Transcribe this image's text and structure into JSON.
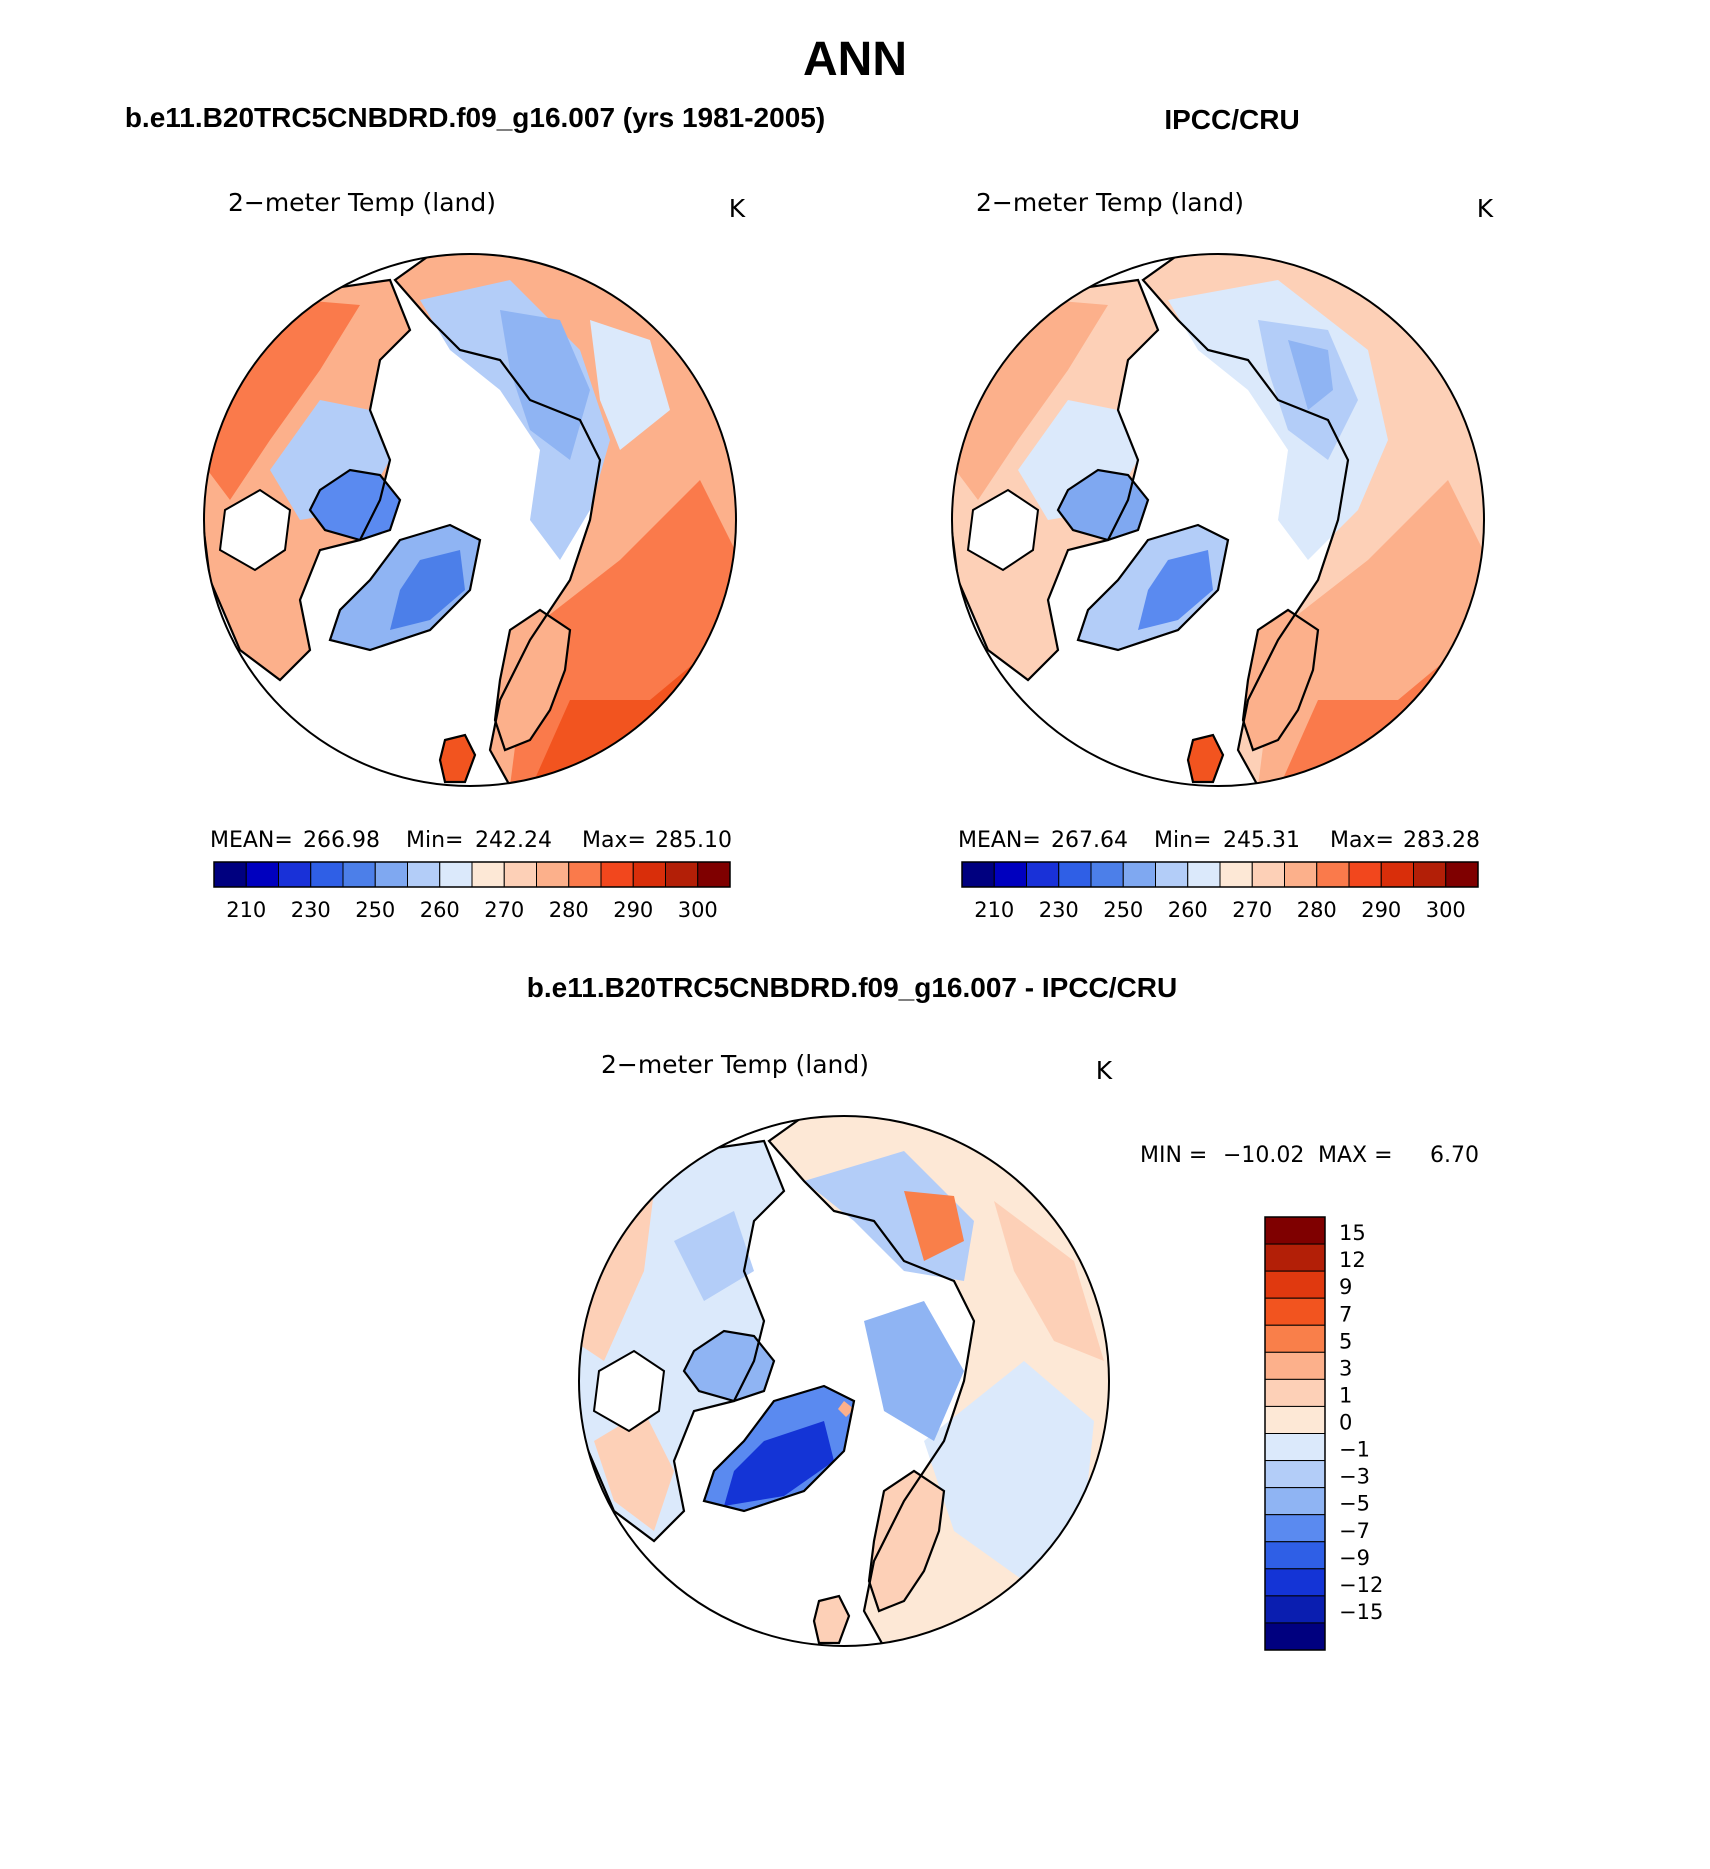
{
  "page": {
    "title": "ANN",
    "top_left_title": "b.e11.B20TRC5CNBDRD.f09_g16.007 (yrs 1981-2005)",
    "top_right_title": "IPCC/CRU",
    "bottom_title": "b.e11.B20TRC5CNBDRD.f09_g16.007 - IPCC/CRU"
  },
  "panels": [
    {
      "variable": "2−meter Temp (land)",
      "units": "K",
      "mean_label": "MEAN=",
      "mean": "266.98",
      "min_label": "Min=",
      "min": "242.24",
      "max_label": "Max=",
      "max": "285.10"
    },
    {
      "variable": "2−meter Temp (land)",
      "units": "K",
      "mean_label": "MEAN=",
      "mean": "267.64",
      "min_label": "Min=",
      "min": "245.31",
      "max_label": "Max=",
      "max": "283.28"
    },
    {
      "variable": "2−meter Temp (land)",
      "units": "K",
      "min_label": "MIN =",
      "min": "−10.02",
      "max_label": "MAX =",
      "max": "6.70"
    }
  ],
  "abs_colorbar": {
    "colors": [
      "#00007f",
      "#0000bf",
      "#1931d8",
      "#2f5fe6",
      "#4c7fe9",
      "#7fa8f1",
      "#b3cdf8",
      "#dbe9fb",
      "#fde8d6",
      "#fdd0b7",
      "#fcb08b",
      "#fa7a4b",
      "#f2471d",
      "#d92e0a",
      "#b31f07",
      "#7f0000"
    ],
    "tick_labels": [
      "210",
      "230",
      "250",
      "260",
      "270",
      "280",
      "290",
      "300"
    ]
  },
  "diff_colorbar": {
    "colors_top_to_bottom": [
      "#7f0000",
      "#b31f07",
      "#e0390f",
      "#f2541f",
      "#f97f4a",
      "#fcb08b",
      "#fdd0b7",
      "#fde8d6",
      "#dbe9fb",
      "#b3cdf8",
      "#8fb4f3",
      "#5a8af0",
      "#2f5fe6",
      "#1434d6",
      "#0a1eb0",
      "#00007f"
    ],
    "tick_labels": [
      "15",
      "12",
      "9",
      "7",
      "5",
      "3",
      "1",
      "0",
      "−1",
      "−3",
      "−5",
      "−7",
      "−9",
      "−12",
      "−15"
    ]
  }
}
